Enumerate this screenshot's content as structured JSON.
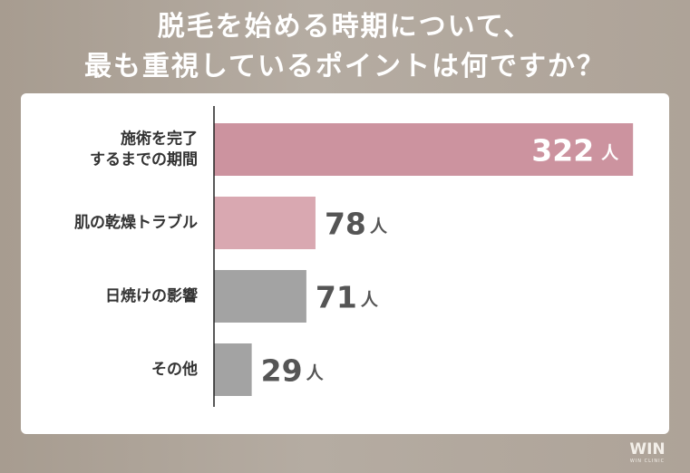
{
  "header": {
    "title_line1": "脱毛を始める時期について、",
    "title_line2": "最も重視しているポイントは何ですか？"
  },
  "chart_data": {
    "type": "bar",
    "orientation": "horizontal",
    "categories": [
      [
        "施術を完了",
        "するまでの期間"
      ],
      [
        "肌の乾燥トラブル"
      ],
      [
        "日焼けの影響"
      ],
      [
        "その他"
      ]
    ],
    "values": [
      322,
      78,
      71,
      29
    ],
    "unit": "人",
    "bar_colors": [
      "#cc939f",
      "#d9a8b1",
      "#a3a3a3",
      "#a3a3a3"
    ],
    "label_colors": [
      "#ffffff",
      "#555555",
      "#555555",
      "#555555"
    ],
    "label_inside": [
      true,
      false,
      false,
      false
    ],
    "xlim": [
      0,
      340
    ]
  },
  "logo": {
    "mark": "WIN",
    "sub": "WIN CLINIC"
  }
}
